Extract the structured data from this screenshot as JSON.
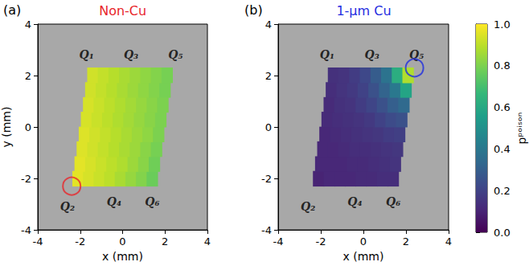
{
  "chart_data": [
    {
      "type": "heatmap",
      "panel": "(a)",
      "title": "Non-Cu",
      "color": "#e8262b",
      "xlabel": "x (mm)",
      "ylabel": "y (mm)",
      "xlim": [
        -4,
        4
      ],
      "ylim": [
        -4,
        4
      ],
      "xticks": [
        -4,
        -2,
        0,
        2,
        4
      ],
      "yticks": [
        -4,
        -2,
        0,
        2,
        4
      ],
      "marker": "circle",
      "highlight": {
        "x": -2.4,
        "y": -2.3
      },
      "qubits": [
        {
          "label": "Q₁",
          "x": -1.7,
          "y": 2.8
        },
        {
          "label": "Q₃",
          "x": 0.4,
          "y": 2.8
        },
        {
          "label": "Q₅",
          "x": 2.5,
          "y": 2.8
        },
        {
          "label": "Q₂",
          "x": -2.6,
          "y": -3.1
        },
        {
          "label": "Q₄",
          "x": -0.4,
          "y": -2.9
        },
        {
          "label": "Q₆",
          "x": 1.4,
          "y": -2.9
        }
      ],
      "cells": [
        [
          -2.1,
          -2.01,
          0.96
        ],
        [
          -1.6,
          -2.01,
          0.94
        ],
        [
          -1.1,
          -2.01,
          0.92
        ],
        [
          -0.6,
          -2.01,
          0.9
        ],
        [
          -0.1,
          -2.01,
          0.87
        ],
        [
          0.4,
          -2.01,
          0.84
        ],
        [
          0.9,
          -2.01,
          0.81
        ],
        [
          1.4,
          -2.01,
          0.77
        ],
        [
          -2.0,
          -1.44,
          0.96
        ],
        [
          -1.5,
          -1.44,
          0.94
        ],
        [
          -1.0,
          -1.44,
          0.92
        ],
        [
          -0.5,
          -1.44,
          0.9
        ],
        [
          0.0,
          -1.44,
          0.88
        ],
        [
          0.5,
          -1.44,
          0.85
        ],
        [
          1.0,
          -1.44,
          0.82
        ],
        [
          1.5,
          -1.44,
          0.78
        ],
        [
          -1.9,
          -0.86,
          0.95
        ],
        [
          -1.4,
          -0.86,
          0.93
        ],
        [
          -0.9,
          -0.86,
          0.91
        ],
        [
          -0.4,
          -0.86,
          0.89
        ],
        [
          0.1,
          -0.86,
          0.87
        ],
        [
          0.6,
          -0.86,
          0.85
        ],
        [
          1.1,
          -0.86,
          0.82
        ],
        [
          1.6,
          -0.86,
          0.79
        ],
        [
          -1.8,
          -0.29,
          0.95
        ],
        [
          -1.3,
          -0.29,
          0.93
        ],
        [
          -0.8,
          -0.29,
          0.91
        ],
        [
          -0.3,
          -0.29,
          0.89
        ],
        [
          0.2,
          -0.29,
          0.87
        ],
        [
          0.7,
          -0.29,
          0.85
        ],
        [
          1.2,
          -0.29,
          0.83
        ],
        [
          1.7,
          -0.29,
          0.8
        ],
        [
          -1.7,
          0.29,
          0.94
        ],
        [
          -1.2,
          0.29,
          0.92
        ],
        [
          -0.7,
          0.29,
          0.9
        ],
        [
          -0.2,
          0.29,
          0.88
        ],
        [
          0.3,
          0.29,
          0.86
        ],
        [
          0.8,
          0.29,
          0.84
        ],
        [
          1.3,
          0.29,
          0.82
        ],
        [
          1.8,
          0.29,
          0.8
        ],
        [
          -1.6,
          0.86,
          0.94
        ],
        [
          -1.1,
          0.86,
          0.92
        ],
        [
          -0.6,
          0.86,
          0.9
        ],
        [
          -0.1,
          0.86,
          0.88
        ],
        [
          0.4,
          0.86,
          0.86
        ],
        [
          0.9,
          0.86,
          0.84
        ],
        [
          1.4,
          0.86,
          0.82
        ],
        [
          1.9,
          0.86,
          0.8
        ],
        [
          -1.5,
          1.44,
          0.93
        ],
        [
          -1.0,
          1.44,
          0.91
        ],
        [
          -0.5,
          1.44,
          0.89
        ],
        [
          0.0,
          1.44,
          0.87
        ],
        [
          0.5,
          1.44,
          0.85
        ],
        [
          1.0,
          1.44,
          0.83
        ],
        [
          1.5,
          1.44,
          0.81
        ],
        [
          2.0,
          1.44,
          0.79
        ],
        [
          -1.4,
          2.01,
          0.93
        ],
        [
          -0.9,
          2.01,
          0.91
        ],
        [
          -0.4,
          2.01,
          0.89
        ],
        [
          0.1,
          2.01,
          0.87
        ],
        [
          0.6,
          2.01,
          0.85
        ],
        [
          1.1,
          2.01,
          0.83
        ],
        [
          1.6,
          2.01,
          0.81
        ],
        [
          2.1,
          2.01,
          0.79
        ]
      ]
    },
    {
      "type": "heatmap",
      "panel": "(b)",
      "title": "1-μm Cu",
      "color": "#1f2de0",
      "xlabel": "x (mm)",
      "xlim": [
        -4,
        4
      ],
      "ylim": [
        -4,
        4
      ],
      "xticks": [
        -4,
        -2,
        0,
        2,
        4
      ],
      "yticks": [
        -4,
        -2,
        0,
        2,
        4
      ],
      "marker": "circle",
      "highlight": {
        "x": 2.4,
        "y": 2.3
      },
      "qubits": [
        {
          "label": "Q₁",
          "x": -1.7,
          "y": 2.8
        },
        {
          "label": "Q₃",
          "x": 0.4,
          "y": 2.8
        },
        {
          "label": "Q₅",
          "x": 2.5,
          "y": 2.8
        },
        {
          "label": "Q₂",
          "x": -2.6,
          "y": -3.1
        },
        {
          "label": "Q₄",
          "x": -0.4,
          "y": -2.9
        },
        {
          "label": "Q₆",
          "x": 1.4,
          "y": -2.9
        }
      ],
      "colorbar": {
        "label": "pᵖᵒⁱˢᵒⁿ",
        "range": [
          0,
          1
        ],
        "ticks": [
          {
            "value": 0,
            "label": "0.0"
          },
          {
            "value": 0.2,
            "label": "0.2"
          },
          {
            "value": 0.4,
            "label": "0.4"
          },
          {
            "value": 0.6,
            "label": "0.6"
          },
          {
            "value": 0.8,
            "label": "0.8"
          },
          {
            "value": 1,
            "label": "1.0"
          }
        ]
      },
      "cells": [
        [
          -2.1,
          -2.01,
          0.1
        ],
        [
          -1.6,
          -2.01,
          0.11
        ],
        [
          -1.1,
          -2.01,
          0.11
        ],
        [
          -0.6,
          -2.01,
          0.11
        ],
        [
          -0.1,
          -2.01,
          0.12
        ],
        [
          0.4,
          -2.01,
          0.12
        ],
        [
          0.9,
          -2.01,
          0.13
        ],
        [
          1.4,
          -2.01,
          0.13
        ],
        [
          -2.0,
          -1.44,
          0.11
        ],
        [
          -1.5,
          -1.44,
          0.11
        ],
        [
          -1.0,
          -1.44,
          0.11
        ],
        [
          -0.5,
          -1.44,
          0.12
        ],
        [
          0.0,
          -1.44,
          0.12
        ],
        [
          0.5,
          -1.44,
          0.13
        ],
        [
          1.0,
          -1.44,
          0.14
        ],
        [
          1.5,
          -1.44,
          0.15
        ],
        [
          -1.9,
          -0.86,
          0.11
        ],
        [
          -1.4,
          -0.86,
          0.11
        ],
        [
          -0.9,
          -0.86,
          0.12
        ],
        [
          -0.4,
          -0.86,
          0.13
        ],
        [
          0.1,
          -0.86,
          0.13
        ],
        [
          0.6,
          -0.86,
          0.14
        ],
        [
          1.1,
          -0.86,
          0.15
        ],
        [
          1.6,
          -0.86,
          0.16
        ],
        [
          -1.8,
          -0.29,
          0.11
        ],
        [
          -1.3,
          -0.29,
          0.12
        ],
        [
          -0.8,
          -0.29,
          0.13
        ],
        [
          -0.3,
          -0.29,
          0.14
        ],
        [
          0.2,
          -0.29,
          0.15
        ],
        [
          0.7,
          -0.29,
          0.16
        ],
        [
          1.2,
          -0.29,
          0.18
        ],
        [
          1.7,
          -0.29,
          0.19
        ],
        [
          -1.7,
          0.29,
          0.12
        ],
        [
          -1.2,
          0.29,
          0.13
        ],
        [
          -0.7,
          0.29,
          0.14
        ],
        [
          -0.2,
          0.29,
          0.15
        ],
        [
          0.3,
          0.29,
          0.17
        ],
        [
          0.8,
          0.29,
          0.2
        ],
        [
          1.3,
          0.29,
          0.23
        ],
        [
          1.8,
          0.29,
          0.25
        ],
        [
          -1.6,
          0.86,
          0.12
        ],
        [
          -1.1,
          0.86,
          0.14
        ],
        [
          -0.6,
          0.86,
          0.15
        ],
        [
          -0.1,
          0.86,
          0.18
        ],
        [
          0.4,
          0.86,
          0.21
        ],
        [
          0.9,
          0.86,
          0.25
        ],
        [
          1.4,
          0.86,
          0.3
        ],
        [
          1.9,
          0.86,
          0.34
        ],
        [
          -1.5,
          1.44,
          0.13
        ],
        [
          -1.0,
          1.44,
          0.15
        ],
        [
          -0.5,
          1.44,
          0.17
        ],
        [
          0.0,
          1.44,
          0.2
        ],
        [
          0.5,
          1.44,
          0.25
        ],
        [
          1.0,
          1.44,
          0.32
        ],
        [
          1.5,
          1.44,
          0.4
        ],
        [
          2.0,
          1.44,
          0.58
        ],
        [
          -1.4,
          2.01,
          0.14
        ],
        [
          -0.9,
          2.01,
          0.15
        ],
        [
          -0.4,
          2.01,
          0.18
        ],
        [
          0.1,
          2.01,
          0.22
        ],
        [
          0.6,
          2.01,
          0.29
        ],
        [
          1.1,
          2.01,
          0.38
        ],
        [
          1.6,
          2.01,
          0.62
        ],
        [
          2.1,
          2.01,
          0.88
        ]
      ]
    }
  ]
}
